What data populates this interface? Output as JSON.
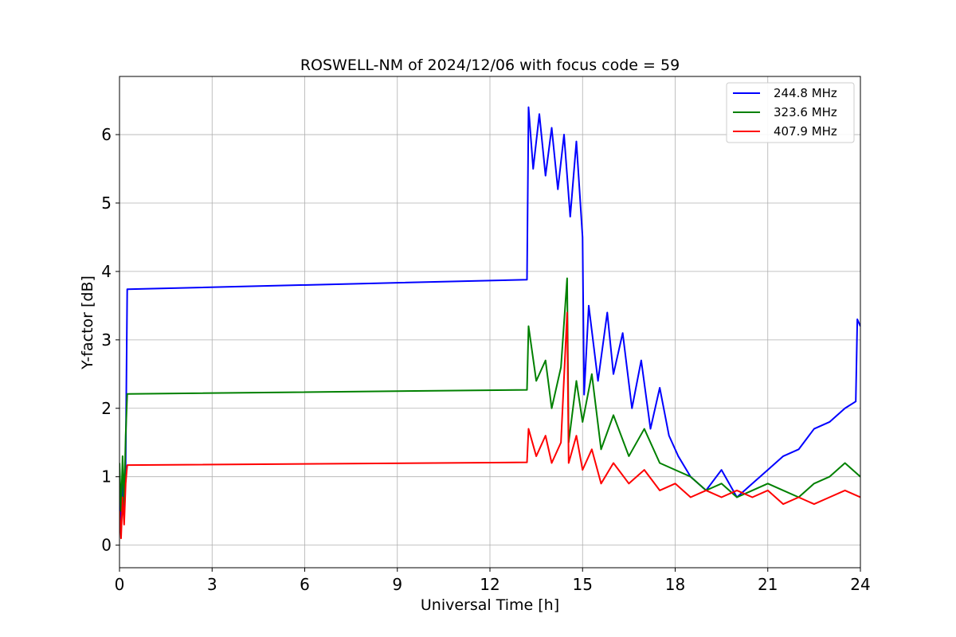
{
  "chart_data": {
    "type": "line",
    "title": "ROSWELL-NM of 2024/12/06 with focus code = 59",
    "xlabel": "Universal Time [h]",
    "ylabel": "Y-factor [dB]",
    "xlim": [
      0,
      24
    ],
    "ylim": [
      -0.33,
      6.85
    ],
    "xticks": [
      0,
      3,
      6,
      9,
      12,
      15,
      18,
      21,
      24
    ],
    "yticks": [
      0,
      1,
      2,
      3,
      4,
      5,
      6
    ],
    "grid": true,
    "legend_position": "top-right",
    "series": [
      {
        "name": "244.8 MHz",
        "color": "#0000ff",
        "points": [
          [
            0.0,
            0.9
          ],
          [
            0.05,
            0.3
          ],
          [
            0.1,
            1.0
          ],
          [
            0.15,
            0.4
          ],
          [
            0.2,
            1.2
          ],
          [
            0.25,
            3.74
          ],
          [
            13.2,
            3.88
          ],
          [
            13.25,
            6.4
          ],
          [
            13.4,
            5.5
          ],
          [
            13.6,
            6.3
          ],
          [
            13.8,
            5.4
          ],
          [
            14.0,
            6.1
          ],
          [
            14.2,
            5.2
          ],
          [
            14.4,
            6.0
          ],
          [
            14.6,
            4.8
          ],
          [
            14.8,
            5.9
          ],
          [
            15.0,
            4.5
          ],
          [
            15.05,
            2.2
          ],
          [
            15.2,
            3.5
          ],
          [
            15.5,
            2.4
          ],
          [
            15.8,
            3.4
          ],
          [
            16.0,
            2.5
          ],
          [
            16.3,
            3.1
          ],
          [
            16.6,
            2.0
          ],
          [
            16.9,
            2.7
          ],
          [
            17.2,
            1.7
          ],
          [
            17.5,
            2.3
          ],
          [
            17.8,
            1.6
          ],
          [
            18.1,
            1.3
          ],
          [
            18.5,
            1.0
          ],
          [
            19.0,
            0.8
          ],
          [
            19.5,
            1.1
          ],
          [
            20.0,
            0.7
          ],
          [
            20.5,
            0.9
          ],
          [
            21.0,
            1.1
          ],
          [
            21.5,
            1.3
          ],
          [
            22.0,
            1.4
          ],
          [
            22.5,
            1.7
          ],
          [
            23.0,
            1.8
          ],
          [
            23.5,
            2.0
          ],
          [
            23.85,
            2.1
          ],
          [
            23.9,
            3.3
          ],
          [
            24.0,
            3.2
          ]
        ]
      },
      {
        "name": "323.6 MHz",
        "color": "#008000",
        "points": [
          [
            0.0,
            1.2
          ],
          [
            0.05,
            0.5
          ],
          [
            0.1,
            1.3
          ],
          [
            0.15,
            0.6
          ],
          [
            0.2,
            1.6
          ],
          [
            0.25,
            2.21
          ],
          [
            13.2,
            2.27
          ],
          [
            13.25,
            3.2
          ],
          [
            13.5,
            2.4
          ],
          [
            13.8,
            2.7
          ],
          [
            14.0,
            2.0
          ],
          [
            14.3,
            2.6
          ],
          [
            14.5,
            3.9
          ],
          [
            14.55,
            1.5
          ],
          [
            14.8,
            2.4
          ],
          [
            15.0,
            1.8
          ],
          [
            15.3,
            2.5
          ],
          [
            15.6,
            1.4
          ],
          [
            16.0,
            1.9
          ],
          [
            16.5,
            1.3
          ],
          [
            17.0,
            1.7
          ],
          [
            17.5,
            1.2
          ],
          [
            18.0,
            1.1
          ],
          [
            18.5,
            1.0
          ],
          [
            19.0,
            0.8
          ],
          [
            19.5,
            0.9
          ],
          [
            20.0,
            0.7
          ],
          [
            20.5,
            0.8
          ],
          [
            21.0,
            0.9
          ],
          [
            21.5,
            0.8
          ],
          [
            22.0,
            0.7
          ],
          [
            22.5,
            0.9
          ],
          [
            23.0,
            1.0
          ],
          [
            23.5,
            1.2
          ],
          [
            24.0,
            1.0
          ]
        ]
      },
      {
        "name": "407.9 MHz",
        "color": "#ff0000",
        "points": [
          [
            0.0,
            0.5
          ],
          [
            0.05,
            0.1
          ],
          [
            0.1,
            0.7
          ],
          [
            0.15,
            0.3
          ],
          [
            0.2,
            0.9
          ],
          [
            0.25,
            1.17
          ],
          [
            13.2,
            1.21
          ],
          [
            13.25,
            1.7
          ],
          [
            13.5,
            1.3
          ],
          [
            13.8,
            1.6
          ],
          [
            14.0,
            1.2
          ],
          [
            14.3,
            1.5
          ],
          [
            14.5,
            3.4
          ],
          [
            14.55,
            1.2
          ],
          [
            14.8,
            1.6
          ],
          [
            15.0,
            1.1
          ],
          [
            15.3,
            1.4
          ],
          [
            15.6,
            0.9
          ],
          [
            16.0,
            1.2
          ],
          [
            16.5,
            0.9
          ],
          [
            17.0,
            1.1
          ],
          [
            17.5,
            0.8
          ],
          [
            18.0,
            0.9
          ],
          [
            18.5,
            0.7
          ],
          [
            19.0,
            0.8
          ],
          [
            19.5,
            0.7
          ],
          [
            20.0,
            0.8
          ],
          [
            20.5,
            0.7
          ],
          [
            21.0,
            0.8
          ],
          [
            21.5,
            0.6
          ],
          [
            22.0,
            0.7
          ],
          [
            22.5,
            0.6
          ],
          [
            23.0,
            0.7
          ],
          [
            23.5,
            0.8
          ],
          [
            24.0,
            0.7
          ]
        ]
      }
    ]
  }
}
